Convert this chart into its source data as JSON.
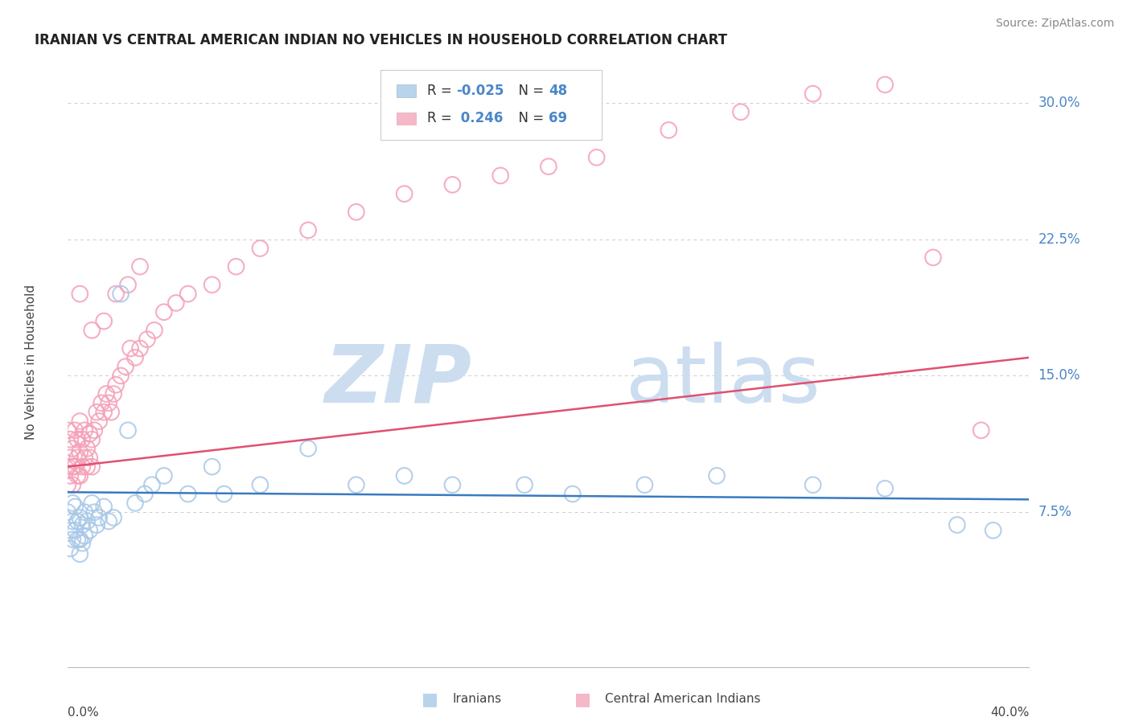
{
  "title": "IRANIAN VS CENTRAL AMERICAN INDIAN NO VEHICLES IN HOUSEHOLD CORRELATION CHART",
  "source_text": "Source: ZipAtlas.com",
  "xmin": 0.0,
  "xmax": 0.4,
  "ymin": -0.01,
  "ymax": 0.325,
  "watermark_line1": "ZIP",
  "watermark_line2": "atlas",
  "iranian_color": "#a8c8e8",
  "central_color": "#f4a0b8",
  "iranian_line_color": "#3a7abf",
  "central_line_color": "#e05070",
  "background_color": "#ffffff",
  "grid_color": "#cccccc",
  "title_fontsize": 12,
  "axis_label_color": "#4a86c8",
  "watermark_color": "#ccddf0",
  "legend_text_color": "#333333",
  "legend_num_color": "#4a86c8",
  "iranian_R": "-0.025",
  "iranian_N": "48",
  "central_R": "0.246",
  "central_N": "69",
  "ytick_vals": [
    0.075,
    0.15,
    0.225,
    0.3
  ],
  "ytick_labels": [
    "7.5%",
    "15.0%",
    "22.5%",
    "30.0%"
  ],
  "iranian_x": [
    0.0,
    0.001,
    0.001,
    0.002,
    0.002,
    0.002,
    0.003,
    0.003,
    0.004,
    0.004,
    0.005,
    0.005,
    0.005,
    0.006,
    0.006,
    0.007,
    0.007,
    0.008,
    0.009,
    0.01,
    0.011,
    0.012,
    0.013,
    0.015,
    0.017,
    0.019,
    0.022,
    0.025,
    0.028,
    0.032,
    0.035,
    0.04,
    0.05,
    0.06,
    0.065,
    0.08,
    0.1,
    0.12,
    0.14,
    0.16,
    0.19,
    0.21,
    0.24,
    0.27,
    0.31,
    0.34,
    0.37,
    0.385
  ],
  "iranian_y": [
    0.075,
    0.065,
    0.055,
    0.08,
    0.07,
    0.06,
    0.078,
    0.065,
    0.07,
    0.06,
    0.072,
    0.06,
    0.052,
    0.068,
    0.058,
    0.075,
    0.062,
    0.07,
    0.065,
    0.08,
    0.075,
    0.068,
    0.072,
    0.078,
    0.07,
    0.072,
    0.195,
    0.12,
    0.08,
    0.085,
    0.09,
    0.095,
    0.085,
    0.1,
    0.085,
    0.09,
    0.11,
    0.09,
    0.095,
    0.09,
    0.09,
    0.085,
    0.09,
    0.095,
    0.09,
    0.088,
    0.068,
    0.065
  ],
  "central_x": [
    0.0,
    0.0,
    0.0,
    0.001,
    0.001,
    0.001,
    0.002,
    0.002,
    0.002,
    0.003,
    0.003,
    0.004,
    0.004,
    0.004,
    0.005,
    0.005,
    0.005,
    0.006,
    0.006,
    0.007,
    0.007,
    0.008,
    0.008,
    0.009,
    0.009,
    0.01,
    0.01,
    0.011,
    0.012,
    0.013,
    0.014,
    0.015,
    0.016,
    0.017,
    0.018,
    0.019,
    0.02,
    0.022,
    0.024,
    0.026,
    0.028,
    0.03,
    0.033,
    0.036,
    0.04,
    0.045,
    0.05,
    0.06,
    0.07,
    0.08,
    0.1,
    0.12,
    0.14,
    0.16,
    0.18,
    0.2,
    0.22,
    0.25,
    0.28,
    0.31,
    0.34,
    0.36,
    0.38,
    0.03,
    0.025,
    0.02,
    0.015,
    0.01,
    0.005
  ],
  "central_y": [
    0.12,
    0.1,
    0.09,
    0.115,
    0.105,
    0.095,
    0.11,
    0.1,
    0.09,
    0.12,
    0.1,
    0.115,
    0.105,
    0.095,
    0.125,
    0.108,
    0.095,
    0.115,
    0.1,
    0.12,
    0.105,
    0.11,
    0.1,
    0.118,
    0.105,
    0.115,
    0.1,
    0.12,
    0.13,
    0.125,
    0.135,
    0.13,
    0.14,
    0.135,
    0.13,
    0.14,
    0.145,
    0.15,
    0.155,
    0.165,
    0.16,
    0.165,
    0.17,
    0.175,
    0.185,
    0.19,
    0.195,
    0.2,
    0.21,
    0.22,
    0.23,
    0.24,
    0.25,
    0.255,
    0.26,
    0.265,
    0.27,
    0.285,
    0.295,
    0.305,
    0.31,
    0.215,
    0.12,
    0.21,
    0.2,
    0.195,
    0.18,
    0.175,
    0.195
  ],
  "blue_line_start_y": 0.086,
  "blue_line_end_y": 0.082,
  "pink_line_start_y": 0.1,
  "pink_line_end_y": 0.16
}
